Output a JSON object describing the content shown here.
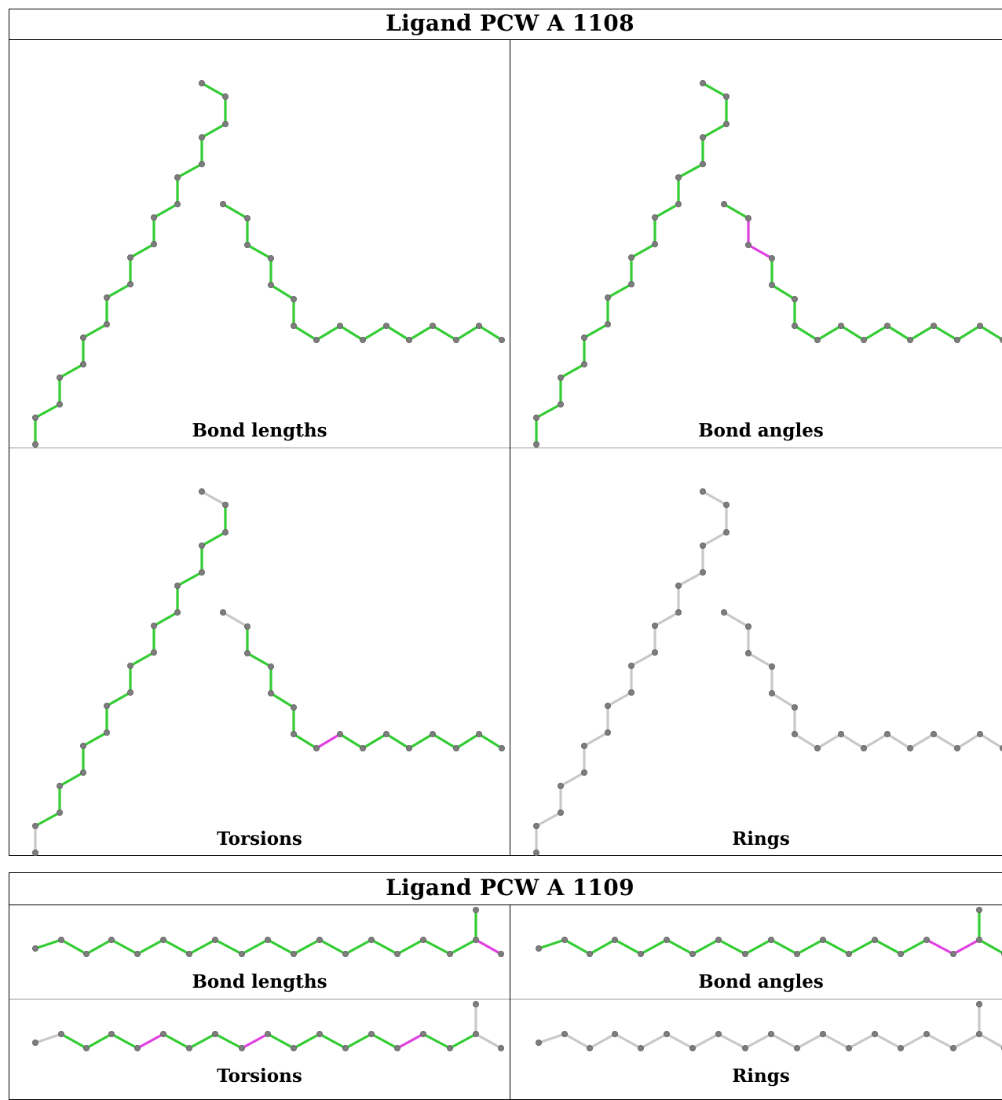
{
  "colors": {
    "ok": "#33cc33",
    "outlier": "#e040e0",
    "na": "#c8c8c8",
    "atom": "#7d7d7d"
  },
  "ligands": [
    {
      "title": "Ligand PCW A 1108",
      "panels": [
        {
          "caption": "Bond lengths"
        },
        {
          "caption": "Bond angles"
        },
        {
          "caption": "Torsions"
        },
        {
          "caption": "Rings"
        }
      ]
    },
    {
      "title": "Ligand PCW A 1109",
      "panels": [
        {
          "caption": "Bond lengths"
        },
        {
          "caption": "Bond angles"
        },
        {
          "caption": "Torsions"
        },
        {
          "caption": "Rings"
        }
      ]
    }
  ]
}
